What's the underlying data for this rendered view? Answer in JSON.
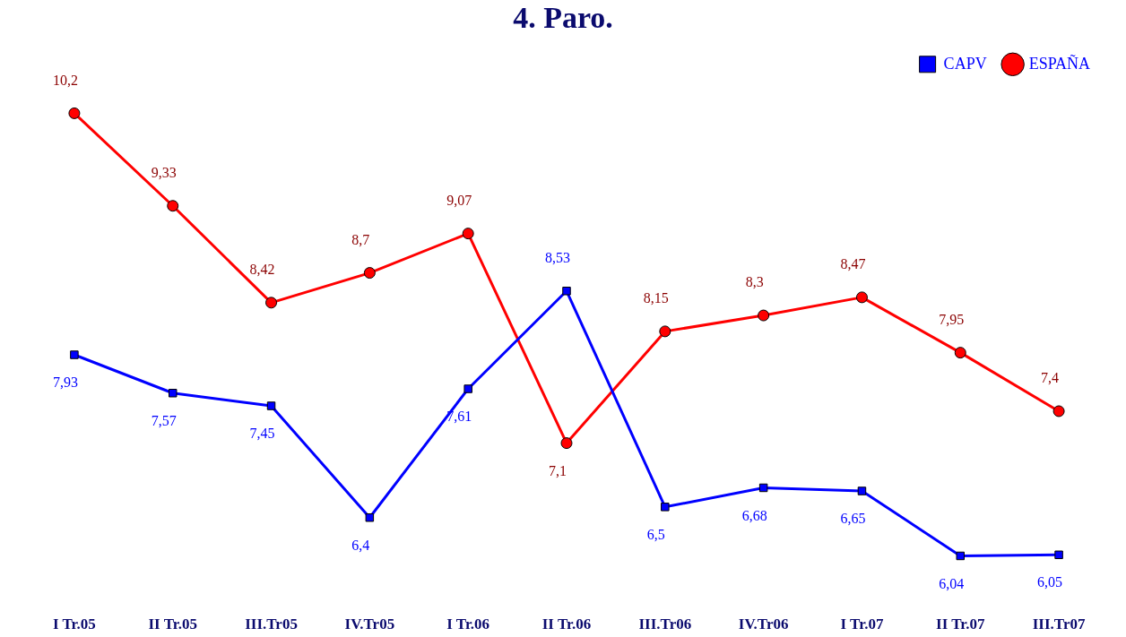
{
  "chart_data": {
    "type": "line",
    "title": "4. Paro.",
    "categories": [
      "I Tr.05",
      "II Tr.05",
      "III.Tr05",
      "IV.Tr05",
      "I Tr.06",
      "II Tr.06",
      "III.Tr06",
      "IV.Tr06",
      "I Tr.07",
      "II Tr.07",
      "III.Tr07"
    ],
    "series": [
      {
        "name": "CAPV",
        "color": "#0000ff",
        "marker": "square",
        "values": [
          7.93,
          7.57,
          7.45,
          6.4,
          7.61,
          8.53,
          6.5,
          6.68,
          6.65,
          6.04,
          6.05
        ],
        "value_labels": [
          "7,93",
          "7,57",
          "7,45",
          "6,4",
          "7,61",
          "8,53",
          "6,5",
          "6,68",
          "6,65",
          "6,04",
          "6,05"
        ]
      },
      {
        "name": "ESPAÑA",
        "color": "#ff0000",
        "marker": "circle",
        "values": [
          10.2,
          9.33,
          8.42,
          8.7,
          9.07,
          7.1,
          8.15,
          8.3,
          8.47,
          7.95,
          7.4
        ],
        "value_labels": [
          "10,2",
          "9,33",
          "8,42",
          "8,7",
          "9,07",
          "7,1",
          "8,15",
          "8,3",
          "8,47",
          "7,95",
          "7,4"
        ]
      }
    ],
    "legend": "top right",
    "line_style": "solid"
  }
}
